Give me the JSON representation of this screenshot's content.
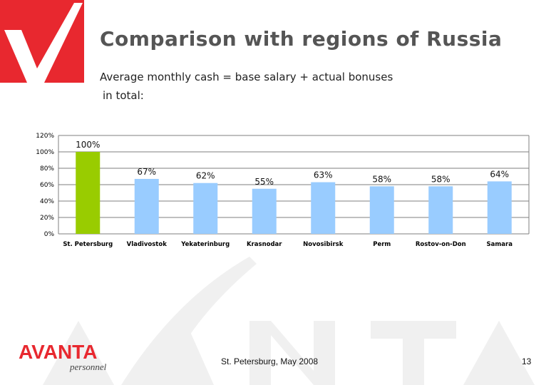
{
  "header": {
    "title": "Comparison with regions of Russia",
    "subtitle_line1": "Average monthly cash = base salary + actual bonuses",
    "subtitle_line2": "in total:"
  },
  "footer": {
    "location_date": "St. Petersburg, May 2008",
    "page_number": "13",
    "brand_name": "AVANTA",
    "brand_tagline": "personnel"
  },
  "colors": {
    "brand_red": "#e8282f",
    "highlight_bar": "#99cc00",
    "regular_bar": "#99ccff",
    "watermark": "#efefef"
  },
  "chart_data": {
    "type": "bar",
    "categories": [
      "St. Petersburg",
      "Vladivostok",
      "Yekaterinburg",
      "Krasnodar",
      "Novosibirsk",
      "Perm",
      "Rostov-on-Don",
      "Samara"
    ],
    "values": [
      100,
      67,
      62,
      55,
      63,
      58,
      58,
      64
    ],
    "data_labels": [
      "100%",
      "67%",
      "62%",
      "55%",
      "63%",
      "58%",
      "58%",
      "64%"
    ],
    "highlight_index": 0,
    "yticks": [
      "0%",
      "20%",
      "40%",
      "60%",
      "80%",
      "100%",
      "120%"
    ],
    "ylim": [
      0,
      120
    ],
    "grid": true
  }
}
